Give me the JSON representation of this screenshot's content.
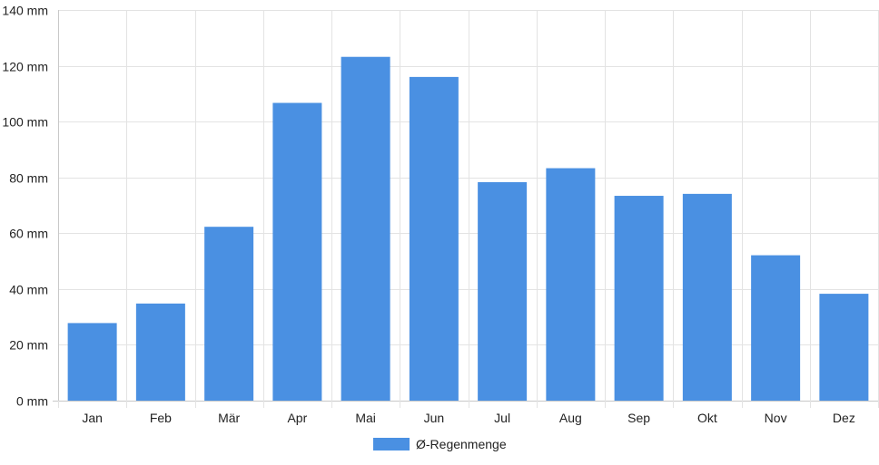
{
  "chart_data": {
    "type": "bar",
    "categories": [
      "Jan",
      "Feb",
      "Mär",
      "Apr",
      "Mai",
      "Jun",
      "Jul",
      "Aug",
      "Sep",
      "Okt",
      "Nov",
      "Dez"
    ],
    "series": [
      {
        "name": "Ø-Regenmenge",
        "color": "#4a90e2",
        "values": [
          27.8,
          34.8,
          62.3,
          106.7,
          123.2,
          116.0,
          78.3,
          83.3,
          73.4,
          74.1,
          52.1,
          38.3
        ]
      }
    ],
    "ylim": [
      0,
      140
    ],
    "y_ticks": [
      0,
      20,
      40,
      60,
      80,
      100,
      120,
      140
    ],
    "y_unit": "mm",
    "y_tick_labels": [
      "0 mm",
      "20 mm",
      "40 mm",
      "60 mm",
      "80 mm",
      "100 mm",
      "120 mm",
      "140 mm"
    ],
    "grid": true,
    "legend": {
      "position": "bottom",
      "label": "Ø-Regenmenge"
    },
    "title": "",
    "xlabel": "",
    "ylabel": ""
  }
}
